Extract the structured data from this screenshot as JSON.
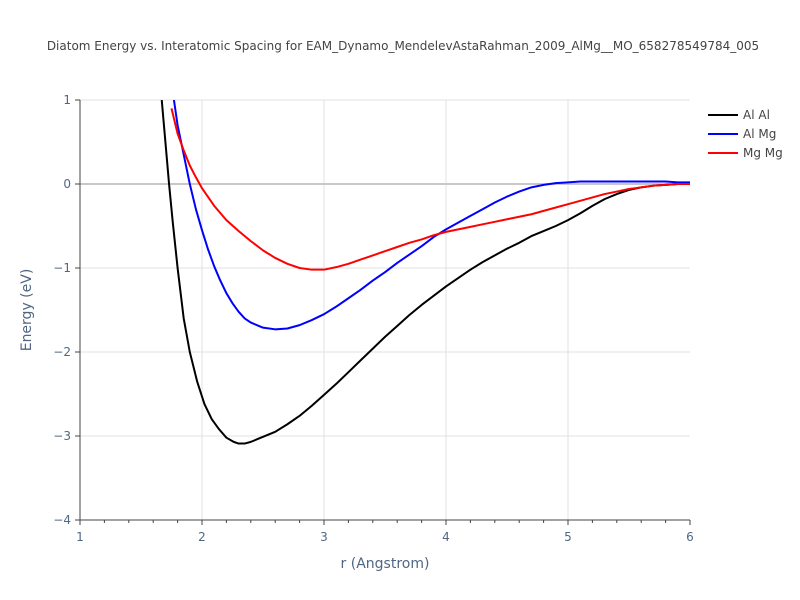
{
  "chart_data": {
    "type": "line",
    "title": "Diatom Energy vs. Interatomic Spacing for EAM_Dynamo_MendelevAstaRahman_2009_AlMg__MO_658278549784_005",
    "xlabel": "r (Angstrom)",
    "ylabel": "Energy (eV)",
    "xlim": [
      1,
      6
    ],
    "ylim": [
      -4,
      1
    ],
    "xticks": [
      "1",
      "2",
      "3",
      "4",
      "5",
      "6"
    ],
    "yticks": [
      "−4",
      "−3",
      "−2",
      "−1",
      "0",
      "1"
    ],
    "grid": true,
    "legend_position": "top-right",
    "series": [
      {
        "name": "Al Al",
        "color": "#000000",
        "x": [
          1.67,
          1.7,
          1.73,
          1.76,
          1.8,
          1.85,
          1.9,
          1.96,
          2.02,
          2.08,
          2.14,
          2.2,
          2.26,
          2.3,
          2.35,
          2.4,
          2.45,
          2.5,
          2.6,
          2.7,
          2.8,
          2.9,
          3.0,
          3.1,
          3.2,
          3.3,
          3.4,
          3.5,
          3.6,
          3.7,
          3.8,
          3.9,
          4.0,
          4.1,
          4.2,
          4.3,
          4.4,
          4.5,
          4.6,
          4.7,
          4.8,
          4.9,
          5.0,
          5.1,
          5.2,
          5.3,
          5.4,
          5.5,
          5.6,
          5.7,
          5.8,
          5.9,
          6.0
        ],
        "y": [
          1.0,
          0.5,
          0.0,
          -0.45,
          -1.0,
          -1.6,
          -2.0,
          -2.35,
          -2.62,
          -2.8,
          -2.92,
          -3.02,
          -3.07,
          -3.09,
          -3.09,
          -3.07,
          -3.04,
          -3.01,
          -2.95,
          -2.86,
          -2.76,
          -2.64,
          -2.51,
          -2.38,
          -2.24,
          -2.1,
          -1.96,
          -1.82,
          -1.69,
          -1.56,
          -1.44,
          -1.33,
          -1.22,
          -1.12,
          -1.02,
          -0.93,
          -0.85,
          -0.77,
          -0.7,
          -0.62,
          -0.56,
          -0.5,
          -0.43,
          -0.35,
          -0.26,
          -0.18,
          -0.12,
          -0.07,
          -0.04,
          -0.02,
          -0.01,
          0.0,
          0.0
        ]
      },
      {
        "name": "Al Mg",
        "color": "#0000ff",
        "x": [
          1.77,
          1.8,
          1.85,
          1.9,
          1.95,
          2.0,
          2.05,
          2.1,
          2.15,
          2.2,
          2.25,
          2.3,
          2.35,
          2.4,
          2.5,
          2.6,
          2.7,
          2.8,
          2.9,
          3.0,
          3.1,
          3.2,
          3.3,
          3.4,
          3.5,
          3.6,
          3.7,
          3.8,
          3.9,
          4.0,
          4.1,
          4.2,
          4.3,
          4.4,
          4.5,
          4.6,
          4.7,
          4.8,
          4.9,
          5.0,
          5.1,
          5.2,
          5.3,
          5.4,
          5.5,
          5.6,
          5.7,
          5.8,
          5.9,
          6.0
        ],
        "y": [
          1.0,
          0.7,
          0.35,
          0.0,
          -0.3,
          -0.55,
          -0.78,
          -0.98,
          -1.15,
          -1.3,
          -1.42,
          -1.52,
          -1.6,
          -1.65,
          -1.71,
          -1.73,
          -1.72,
          -1.68,
          -1.62,
          -1.55,
          -1.46,
          -1.36,
          -1.26,
          -1.15,
          -1.05,
          -0.94,
          -0.84,
          -0.74,
          -0.63,
          -0.54,
          -0.46,
          -0.38,
          -0.3,
          -0.22,
          -0.15,
          -0.09,
          -0.04,
          -0.01,
          0.01,
          0.02,
          0.03,
          0.03,
          0.03,
          0.03,
          0.03,
          0.03,
          0.03,
          0.03,
          0.02,
          0.02
        ]
      },
      {
        "name": "Mg Mg",
        "color": "#ff0000",
        "x": [
          1.75,
          1.8,
          1.85,
          1.9,
          1.95,
          2.0,
          2.1,
          2.2,
          2.3,
          2.4,
          2.5,
          2.6,
          2.7,
          2.8,
          2.9,
          3.0,
          3.1,
          3.2,
          3.3,
          3.4,
          3.5,
          3.6,
          3.7,
          3.8,
          3.9,
          4.0,
          4.1,
          4.2,
          4.3,
          4.4,
          4.5,
          4.6,
          4.7,
          4.8,
          4.9,
          5.0,
          5.1,
          5.2,
          5.3,
          5.4,
          5.5,
          5.6,
          5.7,
          5.8,
          5.9,
          6.0
        ],
        "y": [
          0.9,
          0.6,
          0.4,
          0.22,
          0.08,
          -0.05,
          -0.26,
          -0.43,
          -0.56,
          -0.68,
          -0.79,
          -0.88,
          -0.95,
          -1.0,
          -1.02,
          -1.02,
          -0.99,
          -0.95,
          -0.9,
          -0.85,
          -0.8,
          -0.75,
          -0.7,
          -0.66,
          -0.61,
          -0.57,
          -0.54,
          -0.51,
          -0.48,
          -0.45,
          -0.42,
          -0.39,
          -0.36,
          -0.32,
          -0.28,
          -0.24,
          -0.2,
          -0.16,
          -0.12,
          -0.09,
          -0.06,
          -0.04,
          -0.02,
          -0.01,
          0.0,
          0.0
        ]
      }
    ]
  }
}
